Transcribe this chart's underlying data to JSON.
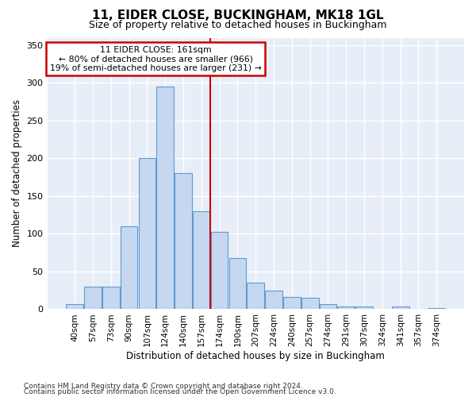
{
  "title": "11, EIDER CLOSE, BUCKINGHAM, MK18 1GL",
  "subtitle": "Size of property relative to detached houses in Buckingham",
  "xlabel": "Distribution of detached houses by size in Buckingham",
  "ylabel": "Number of detached properties",
  "categories": [
    "40sqm",
    "57sqm",
    "73sqm",
    "90sqm",
    "107sqm",
    "124sqm",
    "140sqm",
    "157sqm",
    "174sqm",
    "190sqm",
    "207sqm",
    "224sqm",
    "240sqm",
    "257sqm",
    "274sqm",
    "291sqm",
    "307sqm",
    "324sqm",
    "341sqm",
    "357sqm",
    "374sqm"
  ],
  "values": [
    7,
    30,
    30,
    110,
    200,
    295,
    180,
    130,
    103,
    68,
    35,
    25,
    16,
    15,
    7,
    4,
    4,
    0,
    4,
    1,
    2
  ],
  "bar_color": "#c5d8f0",
  "bar_edge_color": "#5b9bd5",
  "reference_line_x": 7.5,
  "annotation_line1": "11 EIDER CLOSE: 161sqm",
  "annotation_line2": "← 80% of detached houses are smaller (966)",
  "annotation_line3": "19% of semi-detached houses are larger (231) →",
  "annotation_box_color": "#ffffff",
  "annotation_box_edge_color": "#cc0000",
  "vline_color": "#cc0000",
  "background_color": "#e8eef8",
  "grid_color": "#ffffff",
  "footer1": "Contains HM Land Registry data © Crown copyright and database right 2024.",
  "footer2": "Contains public sector information licensed under the Open Government Licence v3.0.",
  "ylim": [
    0,
    360
  ],
  "yticks": [
    0,
    50,
    100,
    150,
    200,
    250,
    300,
    350
  ]
}
